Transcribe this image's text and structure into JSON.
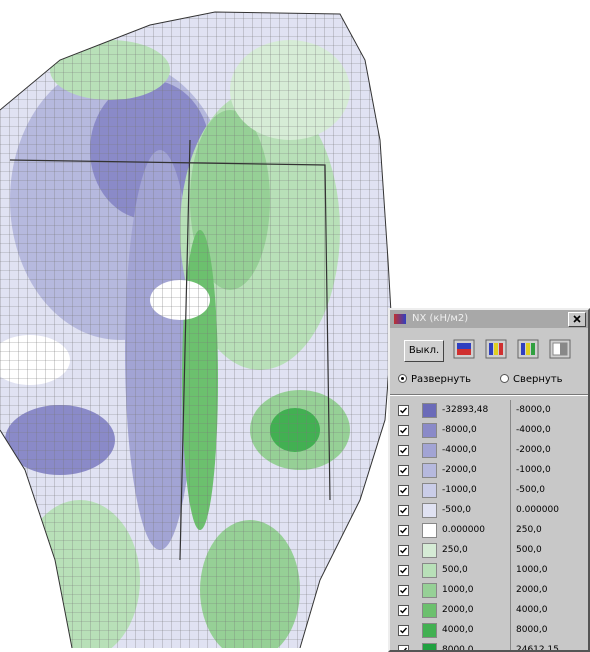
{
  "window": {
    "title": "NX (кН/м2)",
    "off_button": "Выкл.",
    "options": [
      "Развернуть",
      "Свернуть"
    ],
    "legend": [
      {
        "from": "-32893,48",
        "to": "-8000,0",
        "color": "#6b6bb8"
      },
      {
        "from": "-8000,0",
        "to": "-4000,0",
        "color": "#8a8ac8"
      },
      {
        "from": "-4000,0",
        "to": "-2000,0",
        "color": "#a2a4d4"
      },
      {
        "from": "-2000,0",
        "to": "-1000,0",
        "color": "#b6b9de"
      },
      {
        "from": "-1000,0",
        "to": "-500,0",
        "color": "#cacde8"
      },
      {
        "from": "-500,0",
        "to": "0.000000",
        "color": "#e0e2f2"
      },
      {
        "from": "0.000000",
        "to": "250,0",
        "color": "#ffffff"
      },
      {
        "from": "250,0",
        "to": "500,0",
        "color": "#d6ecd6"
      },
      {
        "from": "500,0",
        "to": "1000,0",
        "color": "#b8e0b8"
      },
      {
        "from": "1000,0",
        "to": "2000,0",
        "color": "#96d096"
      },
      {
        "from": "2000,0",
        "to": "4000,0",
        "color": "#6cc06e"
      },
      {
        "from": "4000,0",
        "to": "8000,0",
        "color": "#42b052"
      },
      {
        "from": "8000,0",
        "to": "24612,15",
        "color": "#20a040"
      }
    ]
  }
}
